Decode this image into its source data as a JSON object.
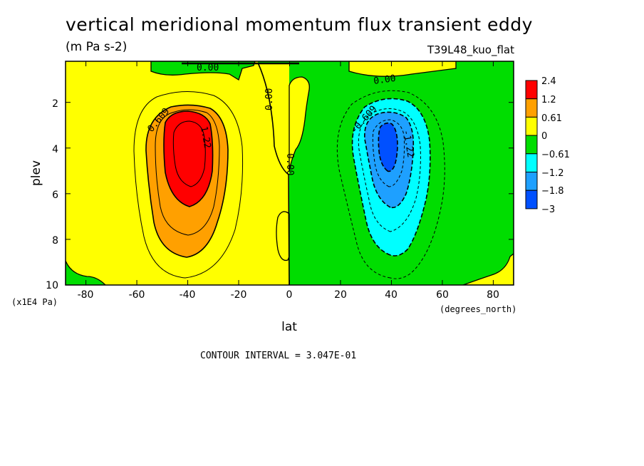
{
  "header": {
    "title": "vertical meridional momentum flux transient eddy",
    "units": "(m Pa s-2)",
    "run_id": "T39L48_kuo_flat"
  },
  "footer": {
    "contour_interval": "CONTOUR INTERVAL = 3.047E-01"
  },
  "colors": {
    "red": "#ff0000",
    "orange": "#ffa000",
    "yellow": "#ffff00",
    "green": "#00dd00",
    "cyan": "#00ffff",
    "mid_blue": "#1ea0ff",
    "blue": "#0050ff"
  },
  "chart_data": {
    "type": "contour",
    "xlabel": "lat",
    "xunit": "(degrees_north)",
    "ylabel": "plev",
    "yunit": "(x1E4 Pa)",
    "xlim": [
      -88,
      88
    ],
    "ylim": [
      10,
      0.2
    ],
    "xticks": [
      -80,
      -60,
      -40,
      -20,
      0,
      20,
      40,
      60,
      80
    ],
    "xtick_labels": [
      "-80",
      "-60",
      "-40",
      "-20",
      "0",
      "20",
      "40",
      "60",
      "80"
    ],
    "yticks": [
      2,
      4,
      6,
      8,
      10
    ],
    "ytick_labels": [
      "2",
      "4",
      "6",
      "8",
      "10"
    ],
    "contour_interval": 0.3047,
    "legend": {
      "placement": "right",
      "labels": [
        "2.4",
        "1.2",
        "0.61",
        "0",
        "−0.61",
        "−1.2",
        "−1.8",
        "−3"
      ],
      "colors": [
        "#ff0000",
        "#ffa000",
        "#ffff00",
        "#00dd00",
        "#00ffff",
        "#1ea0ff",
        "#0050ff"
      ]
    },
    "contour_labels": [
      "0.00",
      "0.00",
      "0.00",
      "0.00",
      "0.609",
      "1.22",
      "-0.609",
      "-1.22"
    ],
    "features": [
      {
        "name": "positive maximum",
        "lat": -40,
        "plev": 4.0,
        "value_range": [
          1.22,
          2.4
        ]
      },
      {
        "name": "negative minimum",
        "lat": 40,
        "plev": 3.5,
        "value_range": [
          -1.8,
          -1.22
        ]
      }
    ]
  }
}
